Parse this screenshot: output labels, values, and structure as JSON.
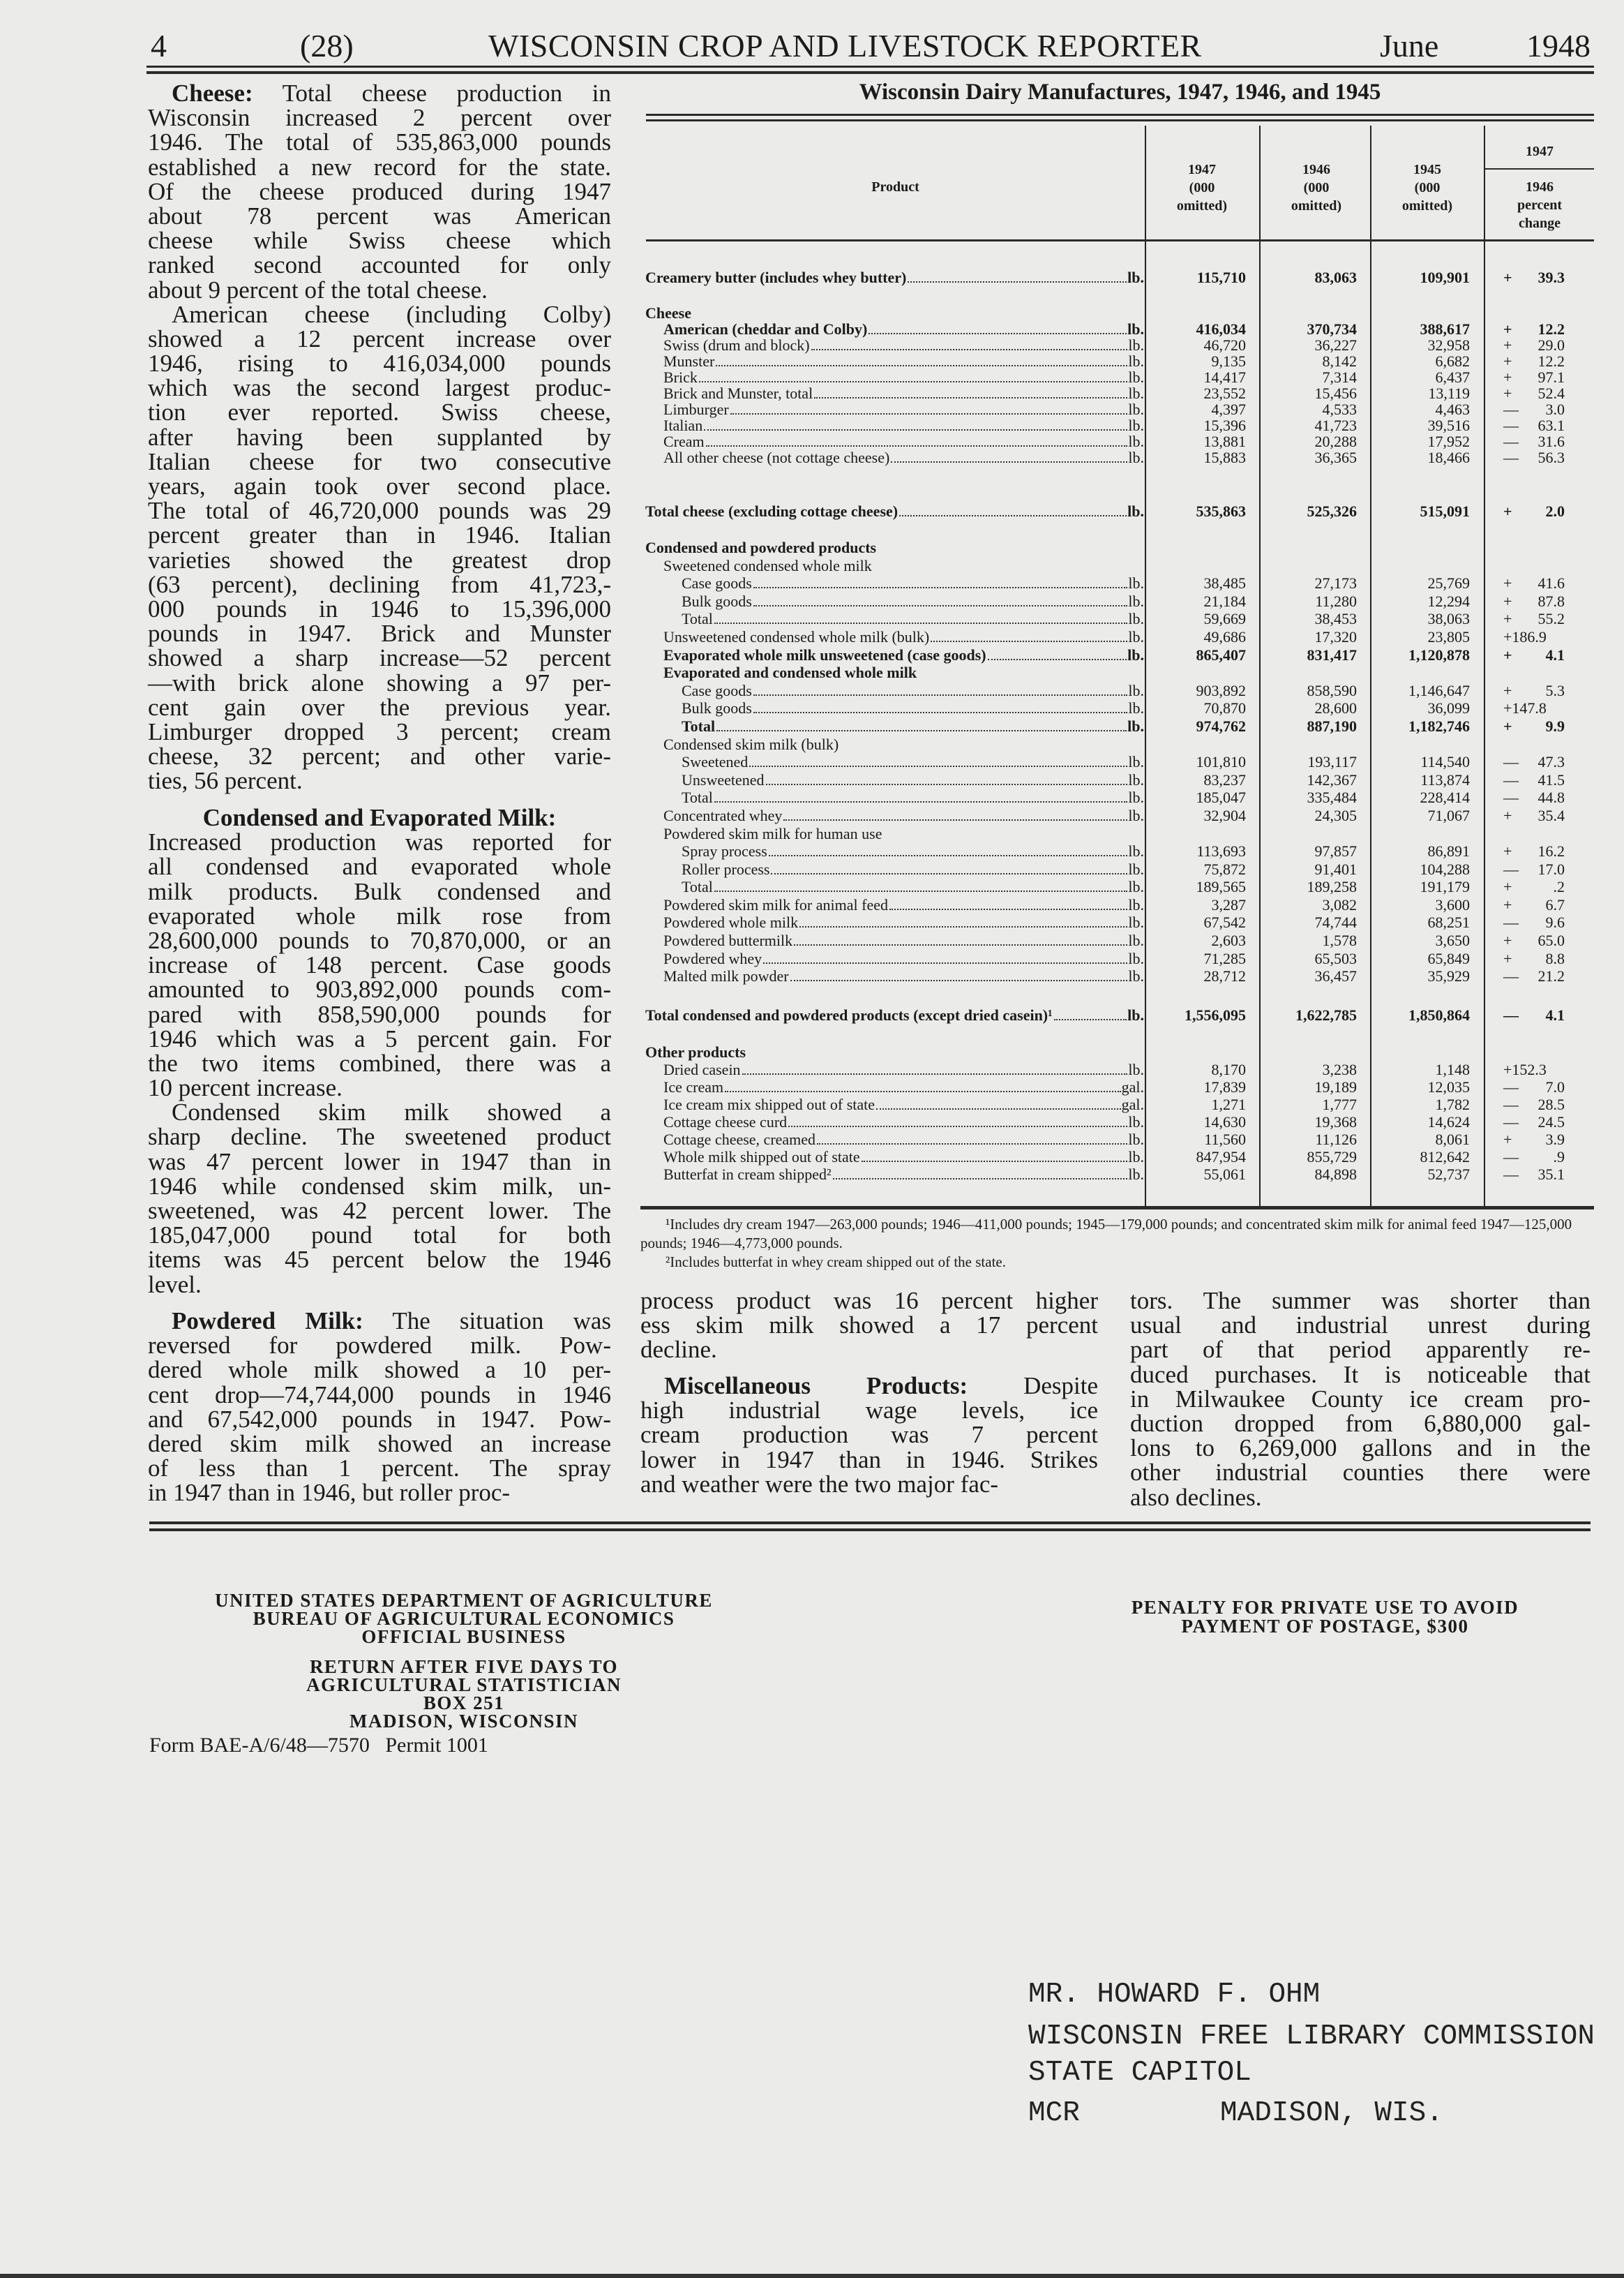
{
  "header": {
    "page": "4",
    "issue": "(28)",
    "title": "WISCONSIN CROP AND LIVESTOCK REPORTER",
    "month": "June",
    "year": "1948"
  },
  "left_column": [
    {
      "lead": "Cheese:",
      "lines": [
        " Total cheese production in",
        "Wisconsin increased 2 percent over",
        "1946. The total of 535,863,000 pounds",
        "established a new record for the state.",
        "Of the cheese produced during 1947",
        "about 78 percent was American",
        "cheese while Swiss cheese which",
        "ranked second accounted for only",
        "about 9 percent of the total cheese."
      ]
    },
    {
      "lead": "",
      "lines": [
        "American cheese (including Colby)",
        "showed a 12 percent increase over",
        "1946, rising to 416,034,000 pounds",
        "which was the second largest produc-",
        "tion ever reported. Swiss cheese,",
        "after having been supplanted by",
        "Italian cheese for two consecutive",
        "years, again took over second place.",
        "The total of 46,720,000 pounds was 29",
        "percent greater than in 1946. Italian",
        "varieties showed the greatest drop",
        "(63 percent), declining from 41,723,-",
        "000 pounds in 1946 to 15,396,000",
        "pounds in 1947. Brick and Munster",
        "showed a sharp increase—52 percent",
        "—with brick alone showing a 97 per-",
        "cent gain over the previous year.",
        "Limburger dropped 3 percent; cream",
        "cheese, 32 percent; and other varie-",
        "ties, 56 percent."
      ]
    }
  ],
  "left_column_2": {
    "heading": "Condensed and Evaporated Milk:",
    "paragraphs": [
      {
        "lines": [
          "Increased production was reported for",
          "all condensed and evaporated whole",
          "milk products. Bulk condensed and",
          "evaporated whole milk rose from",
          "28,600,000 pounds to 70,870,000, or an",
          "increase of 148 percent. Case goods",
          "amounted to 903,892,000 pounds com-",
          "pared with 858,590,000 pounds for",
          "1946 which was a 5 percent gain. For",
          "the two items combined, there was a",
          "10 percent increase."
        ]
      },
      {
        "lines": [
          "Condensed skim milk showed a",
          "sharp decline. The sweetened product",
          "was 47 percent lower in 1947 than in",
          "1946 while condensed skim milk, un-",
          "sweetened, was 42 percent lower. The",
          "185,047,000 pound total for both",
          "items was 45 percent below the 1946",
          "level."
        ]
      }
    ]
  },
  "left_column_3": {
    "lead": "Powdered Milk:",
    "lines": [
      " The situation was",
      "reversed for powdered milk. Pow-",
      "dered whole milk showed a 10 per-",
      "cent drop—74,744,000 pounds in 1946",
      "and 67,542,000 pounds in 1947. Pow-",
      "dered skim milk showed an increase",
      "of less than 1 percent. The spray",
      "in 1947 than in 1946, but roller proc-"
    ]
  },
  "middle_column": {
    "p1": [
      "process product was 16 percent higher",
      "ess skim milk showed a 17 percent",
      "decline."
    ],
    "p2_lead": "Miscellaneous Products:",
    "p2": [
      " Despite",
      "high industrial wage levels, ice",
      "cream production was 7 percent",
      "lower in 1947 than in 1946. Strikes",
      "and weather were the two major fac-"
    ]
  },
  "right_column": [
    "tors. The summer was shorter than",
    "usual and industrial unrest during",
    "part of that period apparently re-",
    "duced purchases. It is noticeable that",
    "in Milwaukee County ice cream pro-",
    "duction dropped from 6,880,000 gal-",
    "lons to 6,269,000 gallons and in the",
    "other industrial counties there were",
    "also declines."
  ],
  "table": {
    "title": "Wisconsin Dairy Manufactures, 1947, 1946, and 1945",
    "product_header": "Product",
    "year_columns": [
      [
        "1947",
        "(000",
        "omitted)"
      ],
      [
        "1946",
        "(000",
        "omitted)"
      ],
      [
        "1945",
        "(000",
        "omitted)"
      ]
    ],
    "change_header": {
      "top": "1947",
      "bottom": [
        "1946",
        "percent",
        "change"
      ]
    },
    "groups": [
      {
        "rows": [
          {
            "label": "Creamery butter (includes whey butter)",
            "unit": "lb.",
            "level": 0,
            "bold": true,
            "values": [
              "115,710",
              "83,063",
              "109,901"
            ],
            "change": "+ 39.3"
          }
        ]
      },
      {
        "rows": [
          {
            "label": "Cheese",
            "level": 0,
            "bold": true,
            "heading": true
          },
          {
            "label": "American (cheddar and Colby)",
            "unit": "lb.",
            "level": 1,
            "bold": true,
            "values": [
              "416,034",
              "370,734",
              "388,617"
            ],
            "change": "+ 12.2"
          },
          {
            "label": "Swiss (drum and block)",
            "unit": "lb.",
            "level": 1,
            "values": [
              "46,720",
              "36,227",
              "32,958"
            ],
            "change": "+ 29.0"
          },
          {
            "label": "Munster",
            "unit": "lb.",
            "level": 1,
            "values": [
              "9,135",
              "8,142",
              "6,682"
            ],
            "change": "+ 12.2"
          },
          {
            "label": "Brick",
            "unit": "lb.",
            "level": 1,
            "values": [
              "14,417",
              "7,314",
              "6,437"
            ],
            "change": "+ 97.1"
          },
          {
            "label": "Brick and Munster, total",
            "unit": "lb.",
            "level": 1,
            "values": [
              "23,552",
              "15,456",
              "13,119"
            ],
            "change": "+ 52.4"
          },
          {
            "label": "Limburger",
            "unit": "lb.",
            "level": 1,
            "values": [
              "4,397",
              "4,533",
              "4,463"
            ],
            "change": "— 3.0"
          },
          {
            "label": "Italian",
            "unit": "lb.",
            "level": 1,
            "values": [
              "15,396",
              "41,723",
              "39,516"
            ],
            "change": "— 63.1"
          },
          {
            "label": "Cream",
            "unit": "lb.",
            "level": 1,
            "values": [
              "13,881",
              "20,288",
              "17,952"
            ],
            "change": "— 31.6"
          },
          {
            "label": "All other cheese (not cottage cheese)",
            "unit": "lb.",
            "level": 1,
            "values": [
              "15,883",
              "36,365",
              "18,466"
            ],
            "change": "— 56.3"
          }
        ]
      },
      {
        "rows": [
          {
            "label": "Total cheese (excluding cottage cheese)",
            "unit": "lb.",
            "level": 0,
            "bold": true,
            "values": [
              "535,863",
              "525,326",
              "515,091"
            ],
            "change": "+ 2.0"
          }
        ]
      },
      {
        "rows": [
          {
            "label": "Condensed and powdered products",
            "level": 0,
            "bold": true,
            "heading": true
          },
          {
            "label": "Sweetened condensed whole milk",
            "level": 1,
            "heading": true
          },
          {
            "label": "Case goods",
            "unit": "lb.",
            "level": 2,
            "values": [
              "38,485",
              "27,173",
              "25,769"
            ],
            "change": "+ 41.6"
          },
          {
            "label": "Bulk goods",
            "unit": "lb.",
            "level": 2,
            "values": [
              "21,184",
              "11,280",
              "12,294"
            ],
            "change": "+ 87.8"
          },
          {
            "label": "Total",
            "unit": "lb.",
            "level": 2,
            "values": [
              "59,669",
              "38,453",
              "38,063"
            ],
            "change": "+ 55.2"
          },
          {
            "label": "Unsweetened condensed whole milk (bulk)",
            "unit": "lb.",
            "level": 1,
            "values": [
              "49,686",
              "17,320",
              "23,805"
            ],
            "change": "+186.9"
          },
          {
            "label": "Evaporated whole milk unsweetened (case goods)",
            "unit": "lb.",
            "level": 1,
            "bold": true,
            "values": [
              "865,407",
              "831,417",
              "1,120,878"
            ],
            "change": "+ 4.1"
          },
          {
            "label": "Evaporated and condensed whole milk",
            "level": 1,
            "bold": true,
            "heading": true
          },
          {
            "label": "Case goods",
            "unit": "lb.",
            "level": 2,
            "values": [
              "903,892",
              "858,590",
              "1,146,647"
            ],
            "change": "+ 5.3"
          },
          {
            "label": "Bulk goods",
            "unit": "lb.",
            "level": 2,
            "values": [
              "70,870",
              "28,600",
              "36,099"
            ],
            "change": "+147.8"
          },
          {
            "label": "Total",
            "unit": "lb.",
            "level": 2,
            "bold": true,
            "values": [
              "974,762",
              "887,190",
              "1,182,746"
            ],
            "change": "+ 9.9"
          },
          {
            "label": "Condensed skim milk (bulk)",
            "level": 1,
            "heading": true
          },
          {
            "label": "Sweetened",
            "unit": "lb.",
            "level": 2,
            "values": [
              "101,810",
              "193,117",
              "114,540"
            ],
            "change": "— 47.3"
          },
          {
            "label": "Unsweetened",
            "unit": "lb.",
            "level": 2,
            "values": [
              "83,237",
              "142,367",
              "113,874"
            ],
            "change": "— 41.5"
          },
          {
            "label": "Total",
            "unit": "lb.",
            "level": 2,
            "values": [
              "185,047",
              "335,484",
              "228,414"
            ],
            "change": "— 44.8"
          },
          {
            "label": "Concentrated whey",
            "unit": "lb.",
            "level": 1,
            "values": [
              "32,904",
              "24,305",
              "71,067"
            ],
            "change": "+ 35.4"
          },
          {
            "label": "Powdered skim milk for human use",
            "level": 1,
            "heading": true
          },
          {
            "label": "Spray process",
            "unit": "lb.",
            "level": 2,
            "values": [
              "113,693",
              "97,857",
              "86,891"
            ],
            "change": "+ 16.2"
          },
          {
            "label": "Roller process",
            "unit": "lb.",
            "level": 2,
            "values": [
              "75,872",
              "91,401",
              "104,288"
            ],
            "change": "— 17.0"
          },
          {
            "label": "Total",
            "unit": "lb.",
            "level": 2,
            "values": [
              "189,565",
              "189,258",
              "191,179"
            ],
            "change": "+ .2"
          },
          {
            "label": "Powdered skim milk for animal feed",
            "unit": "lb.",
            "level": 1,
            "values": [
              "3,287",
              "3,082",
              "3,600"
            ],
            "change": "+ 6.7"
          },
          {
            "label": "Powdered whole milk",
            "unit": "lb.",
            "level": 1,
            "values": [
              "67,542",
              "74,744",
              "68,251"
            ],
            "change": "— 9.6"
          },
          {
            "label": "Powdered buttermilk",
            "unit": "lb.",
            "level": 1,
            "values": [
              "2,603",
              "1,578",
              "3,650"
            ],
            "change": "+ 65.0"
          },
          {
            "label": "Powdered whey",
            "unit": "lb.",
            "level": 1,
            "values": [
              "71,285",
              "65,503",
              "65,849"
            ],
            "change": "+ 8.8"
          },
          {
            "label": "Malted milk powder",
            "unit": "lb.",
            "level": 1,
            "values": [
              "28,712",
              "36,457",
              "35,929"
            ],
            "change": "— 21.2"
          }
        ]
      },
      {
        "rows": [
          {
            "label": "Total condensed and powdered products (except dried casein)¹",
            "unit": "lb.",
            "level": 0,
            "bold": true,
            "values": [
              "1,556,095",
              "1,622,785",
              "1,850,864"
            ],
            "change": "— 4.1"
          }
        ]
      },
      {
        "rows": [
          {
            "label": "Other products",
            "level": 0,
            "bold": true,
            "heading": true
          },
          {
            "label": "Dried casein",
            "unit": "lb.",
            "level": 1,
            "values": [
              "8,170",
              "3,238",
              "1,148"
            ],
            "change": "+152.3"
          },
          {
            "label": "Ice cream",
            "unit": "gal.",
            "level": 1,
            "values": [
              "17,839",
              "19,189",
              "12,035"
            ],
            "change": "— 7.0"
          },
          {
            "label": "Ice cream mix shipped out of state",
            "unit": "gal.",
            "level": 1,
            "values": [
              "1,271",
              "1,777",
              "1,782"
            ],
            "change": "— 28.5"
          },
          {
            "label": "Cottage cheese curd",
            "unit": "lb.",
            "level": 1,
            "values": [
              "14,630",
              "19,368",
              "14,624"
            ],
            "change": "— 24.5"
          },
          {
            "label": "Cottage cheese, creamed",
            "unit": "lb.",
            "level": 1,
            "values": [
              "11,560",
              "11,126",
              "8,061"
            ],
            "change": "+ 3.9"
          },
          {
            "label": "Whole milk shipped out of state",
            "unit": "lb.",
            "level": 1,
            "values": [
              "847,954",
              "855,729",
              "812,642"
            ],
            "change": "— .9"
          },
          {
            "label": "Butterfat in cream shipped²",
            "unit": "lb.",
            "level": 1,
            "values": [
              "55,061",
              "84,898",
              "52,737"
            ],
            "change": "— 35.1"
          }
        ]
      }
    ],
    "footnotes": [
      "¹Includes dry cream 1947—263,000 pounds; 1946—411,000 pounds; 1945—179,000 pounds; and concentrated skim milk for animal feed 1947—125,000 pounds; 1946—4,773,000 pounds.",
      "²Includes butterfat in whey cream shipped out of the state."
    ]
  },
  "mailing": {
    "sender": [
      "UNITED STATES DEPARTMENT OF AGRICULTURE",
      "BUREAU OF AGRICULTURAL ECONOMICS",
      "OFFICIAL BUSINESS"
    ],
    "return": [
      "RETURN AFTER FIVE DAYS TO",
      "AGRICULTURAL STATISTICIAN",
      "BOX 251",
      "MADISON, WISCONSIN"
    ],
    "form": "Form BAE-A/6/48—7570   Permit 1001",
    "penalty": [
      "PENALTY FOR PRIVATE USE TO AVOID",
      "PAYMENT OF POSTAGE, $300"
    ]
  },
  "address": {
    "lines": [
      "MR. HOWARD F. OHM",
      "WISCONSIN FREE LIBRARY COMMISSION",
      "STATE CAPITOL"
    ],
    "code": "MCR",
    "city": "MADISON, WIS."
  }
}
